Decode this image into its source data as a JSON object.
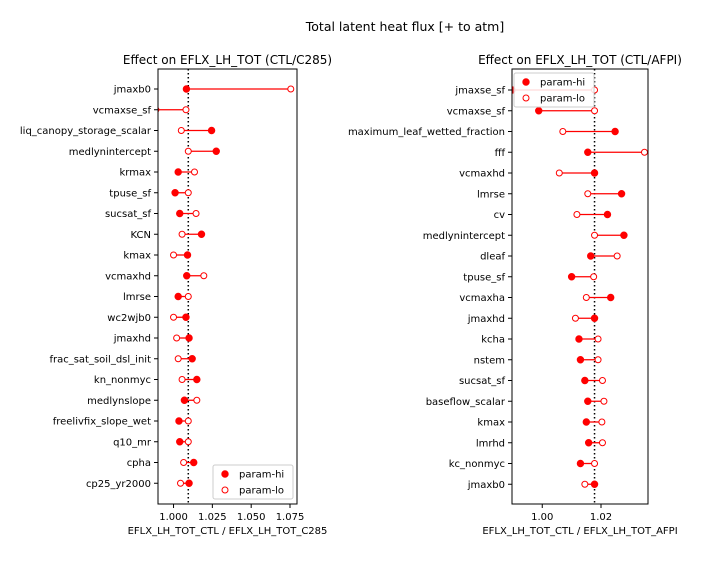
{
  "figure": {
    "suptitle": "Total latent heat flux [+ to atm]"
  },
  "chart_data": [
    {
      "type": "scatter",
      "title": "Effect on EFLX_LH_TOT (CTL/C285)",
      "xlabel": "EFLX_LH_TOT_CTL / EFLX_LH_TOT_C285",
      "ylabel": "",
      "xlim": [
        0.99,
        1.0795
      ],
      "xticks": [
        1.0,
        1.025,
        1.05,
        1.075
      ],
      "xtick_labels": [
        "1.000",
        "1.025",
        "1.050",
        "1.075"
      ],
      "reference_x": 1.0095,
      "legend": {
        "placement": "lower right",
        "entries": [
          "param-hi",
          "param-lo"
        ]
      },
      "grid": false,
      "categories": [
        "jmaxb0",
        "vcmaxse_sf",
        "liq_canopy_storage_scalar",
        "medlynintercept",
        "krmax",
        "tpuse_sf",
        "sucsat_sf",
        "KCN",
        "kmax",
        "vcmaxhd",
        "lmrse",
        "wc2wjb0",
        "jmaxhd",
        "frac_sat_soil_dsl_init",
        "kn_nonmyc",
        "medlynslope",
        "freelivfix_slope_wet",
        "q10_mr",
        "cpha",
        "cp25_yr2000"
      ],
      "series": [
        {
          "name": "param-hi",
          "marker": "filled",
          "values": [
            1.0083,
            0.9885,
            1.0245,
            1.0275,
            1.003,
            1.001,
            1.004,
            1.018,
            1.009,
            1.0085,
            1.003,
            1.008,
            1.01,
            1.012,
            1.015,
            1.007,
            1.0035,
            1.004,
            1.013,
            1.01
          ]
        },
        {
          "name": "param-lo",
          "marker": "open",
          "values": [
            1.0755,
            1.008,
            1.005,
            1.0095,
            1.0135,
            1.0095,
            1.0145,
            1.0055,
            1.0,
            1.0195,
            1.0095,
            1.0,
            1.002,
            1.003,
            1.0055,
            1.015,
            1.0095,
            1.0095,
            1.0065,
            1.0045
          ]
        }
      ],
      "colors": {
        "hi": "#ff0000",
        "lo": "#ff0000",
        "line": "#ff0000",
        "reference": "#000000"
      }
    },
    {
      "type": "scatter",
      "title": "Effect on EFLX_LH_TOT (CTL/AFPI)",
      "xlabel": "EFLX_LH_TOT_CTL / EFLX_LH_TOT_AFPI",
      "ylabel": "",
      "xlim": [
        0.9897,
        1.036
      ],
      "xticks": [
        1.0,
        1.02
      ],
      "xtick_labels": [
        "1.00",
        "1.02"
      ],
      "reference_x": 1.0178,
      "legend": {
        "placement": "upper left",
        "entries": [
          "param-hi",
          "param-lo"
        ]
      },
      "grid": false,
      "categories": [
        "jmaxse_sf",
        "vcmaxse_sf",
        "maximum_leaf_wetted_fraction",
        "fff",
        "vcmaxhd",
        "lmrse",
        "cv",
        "medlynintercept",
        "dleaf",
        "tpuse_sf",
        "vcmaxha",
        "jmaxhd",
        "kcha",
        "nstem",
        "sucsat_sf",
        "baseflow_scalar",
        "kmax",
        "lmrhd",
        "kc_nonmyc",
        "jmaxb0"
      ],
      "series": [
        {
          "name": "param-hi",
          "marker": "filled",
          "values": [
            0.9897,
            0.9988,
            1.0248,
            1.0155,
            1.0178,
            1.027,
            1.0222,
            1.0278,
            1.0165,
            1.01,
            1.0233,
            1.0178,
            1.0125,
            1.013,
            1.0145,
            1.0155,
            1.015,
            1.0158,
            1.013,
            1.0178
          ]
        },
        {
          "name": "param-lo",
          "marker": "open",
          "values": [
            1.0178,
            1.0178,
            1.007,
            1.0348,
            1.0058,
            1.0155,
            1.0118,
            1.0178,
            1.0255,
            1.0175,
            1.015,
            1.0113,
            1.019,
            1.019,
            1.0205,
            1.021,
            1.0203,
            1.0205,
            1.0178,
            1.0145
          ]
        }
      ],
      "colors": {
        "hi": "#ff0000",
        "lo": "#ff0000",
        "line": "#ff0000",
        "reference": "#000000"
      }
    }
  ]
}
